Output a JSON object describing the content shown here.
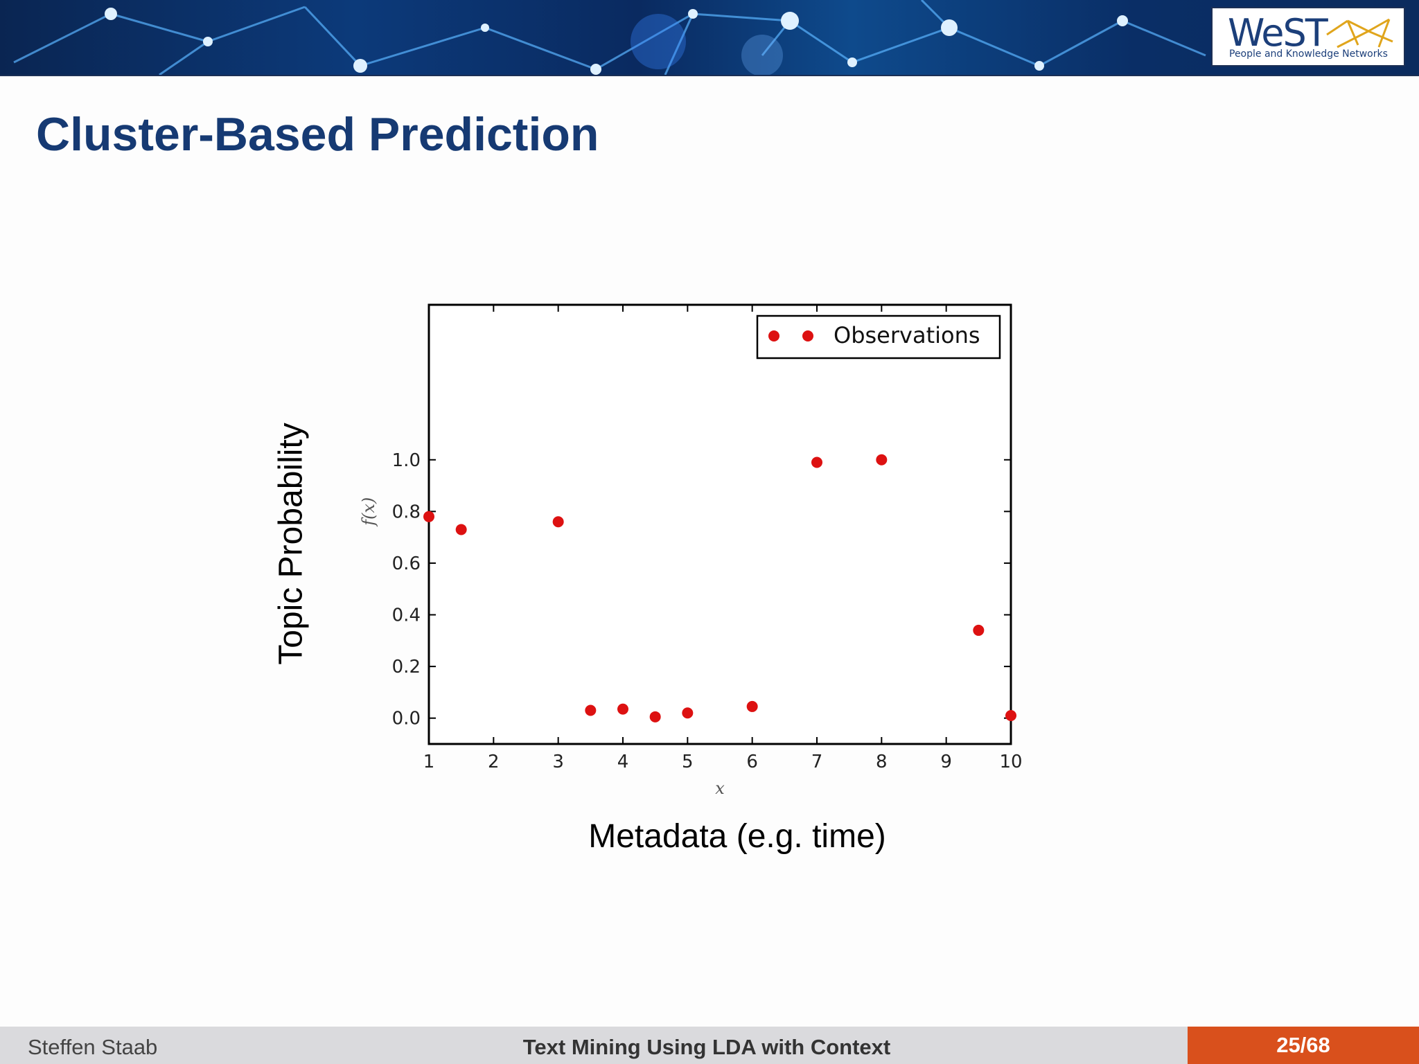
{
  "slide": {
    "title": "Cluster-Based Prediction",
    "annotation_ylabel": "Topic Probability",
    "annotation_xlabel": "Metadata (e.g. time)"
  },
  "logo": {
    "word": "WeST",
    "subtitle": "People and Knowledge Networks"
  },
  "footer": {
    "author": "Steffen Staab",
    "talk_title": "Text Mining Using LDA with Context",
    "page": "25/68"
  },
  "colors": {
    "title": "#163a73",
    "marker": "#dd1111",
    "page_badge": "#d9501c"
  },
  "chart_data": {
    "type": "scatter",
    "xlabel": "x",
    "ylabel": "f(x)",
    "xlim": [
      1,
      10
    ],
    "ylim": [
      -0.1,
      1.6
    ],
    "xticks": [
      1,
      2,
      3,
      4,
      5,
      6,
      7,
      8,
      9,
      10
    ],
    "yticks": [
      0.0,
      0.2,
      0.4,
      0.6,
      0.8,
      1.0
    ],
    "ytick_labels": [
      "0.0",
      "0.2",
      "0.4",
      "0.6",
      "0.8",
      "1.0"
    ],
    "grid": false,
    "legend_position": "top-right",
    "series": [
      {
        "name": "Observations",
        "color": "#dd1111",
        "x": [
          1,
          1.5,
          3,
          3.5,
          4,
          4.5,
          5,
          6,
          7,
          8,
          9.5,
          10
        ],
        "y": [
          0.78,
          0.73,
          0.76,
          0.03,
          0.035,
          0.005,
          0.02,
          0.045,
          0.99,
          1.0,
          0.34,
          0.01
        ]
      }
    ]
  }
}
